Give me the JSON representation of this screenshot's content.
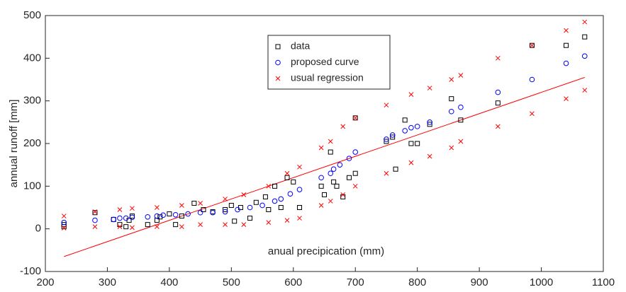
{
  "chart_data": {
    "type": "scatter",
    "xlabel": "anual precipication (mm)",
    "ylabel": "annual runoff [mm]",
    "xlim": [
      200,
      1100
    ],
    "ylim": [
      -100,
      500
    ],
    "xticks": [
      200,
      300,
      400,
      500,
      600,
      700,
      800,
      900,
      1000,
      1100
    ],
    "yticks": [
      -100,
      0,
      100,
      200,
      300,
      400,
      500
    ],
    "grid": false,
    "legend": "top",
    "series": [
      {
        "name": "data",
        "color": "#000000",
        "marker": "square",
        "x": [
          230,
          230,
          280,
          310,
          320,
          330,
          335,
          340,
          365,
          380,
          385,
          400,
          410,
          420,
          440,
          455,
          470,
          490,
          500,
          505,
          515,
          530,
          540,
          555,
          560,
          570,
          580,
          590,
          600,
          610,
          645,
          650,
          660,
          665,
          670,
          680,
          690,
          700,
          700,
          750,
          760,
          765,
          780,
          790,
          800,
          820,
          855,
          870,
          930,
          985,
          1040,
          1070
        ],
        "values": [
          5,
          10,
          38,
          22,
          10,
          5,
          20,
          30,
          10,
          20,
          28,
          35,
          10,
          30,
          60,
          45,
          40,
          45,
          55,
          18,
          50,
          25,
          62,
          75,
          45,
          100,
          50,
          120,
          110,
          50,
          100,
          80,
          180,
          110,
          100,
          75,
          120,
          130,
          260,
          205,
          215,
          140,
          255,
          200,
          200,
          245,
          305,
          255,
          295,
          430,
          430,
          450
        ]
      },
      {
        "name": "proposed curve",
        "color": "#0000ff",
        "marker": "circle",
        "x": [
          230,
          280,
          310,
          320,
          330,
          340,
          365,
          380,
          390,
          410,
          430,
          450,
          470,
          490,
          510,
          530,
          550,
          570,
          580,
          595,
          610,
          645,
          660,
          665,
          675,
          690,
          700,
          750,
          760,
          780,
          790,
          800,
          820,
          855,
          870,
          930,
          985,
          1040,
          1070
        ],
        "values": [
          15,
          20,
          22,
          25,
          25,
          27,
          28,
          30,
          32,
          33,
          35,
          38,
          38,
          40,
          45,
          50,
          55,
          65,
          70,
          82,
          92,
          120,
          130,
          140,
          150,
          165,
          180,
          210,
          220,
          230,
          237,
          240,
          250,
          275,
          285,
          320,
          350,
          388,
          405
        ]
      },
      {
        "name": "usual regression",
        "color": "#ff0000",
        "marker": "x",
        "x": [
          230,
          230,
          280,
          280,
          320,
          320,
          340,
          340,
          380,
          380,
          420,
          420,
          450,
          450,
          490,
          490,
          520,
          520,
          560,
          560,
          590,
          590,
          610,
          610,
          645,
          645,
          660,
          660,
          680,
          680,
          700,
          700,
          750,
          750,
          790,
          790,
          820,
          820,
          855,
          855,
          870,
          870,
          930,
          930,
          985,
          985,
          1040,
          1040,
          1070,
          1070
        ],
        "values": [
          30,
          2,
          40,
          5,
          45,
          5,
          48,
          3,
          50,
          5,
          55,
          5,
          60,
          10,
          70,
          10,
          80,
          10,
          100,
          15,
          130,
          20,
          145,
          25,
          190,
          55,
          205,
          65,
          240,
          80,
          260,
          100,
          290,
          130,
          315,
          155,
          330,
          170,
          350,
          190,
          360,
          205,
          400,
          240,
          430,
          270,
          465,
          305,
          485,
          325
        ]
      }
    ],
    "regression_line": {
      "color": "#ff0000",
      "x": [
        230,
        1070
      ],
      "values": [
        -65,
        355
      ]
    }
  }
}
